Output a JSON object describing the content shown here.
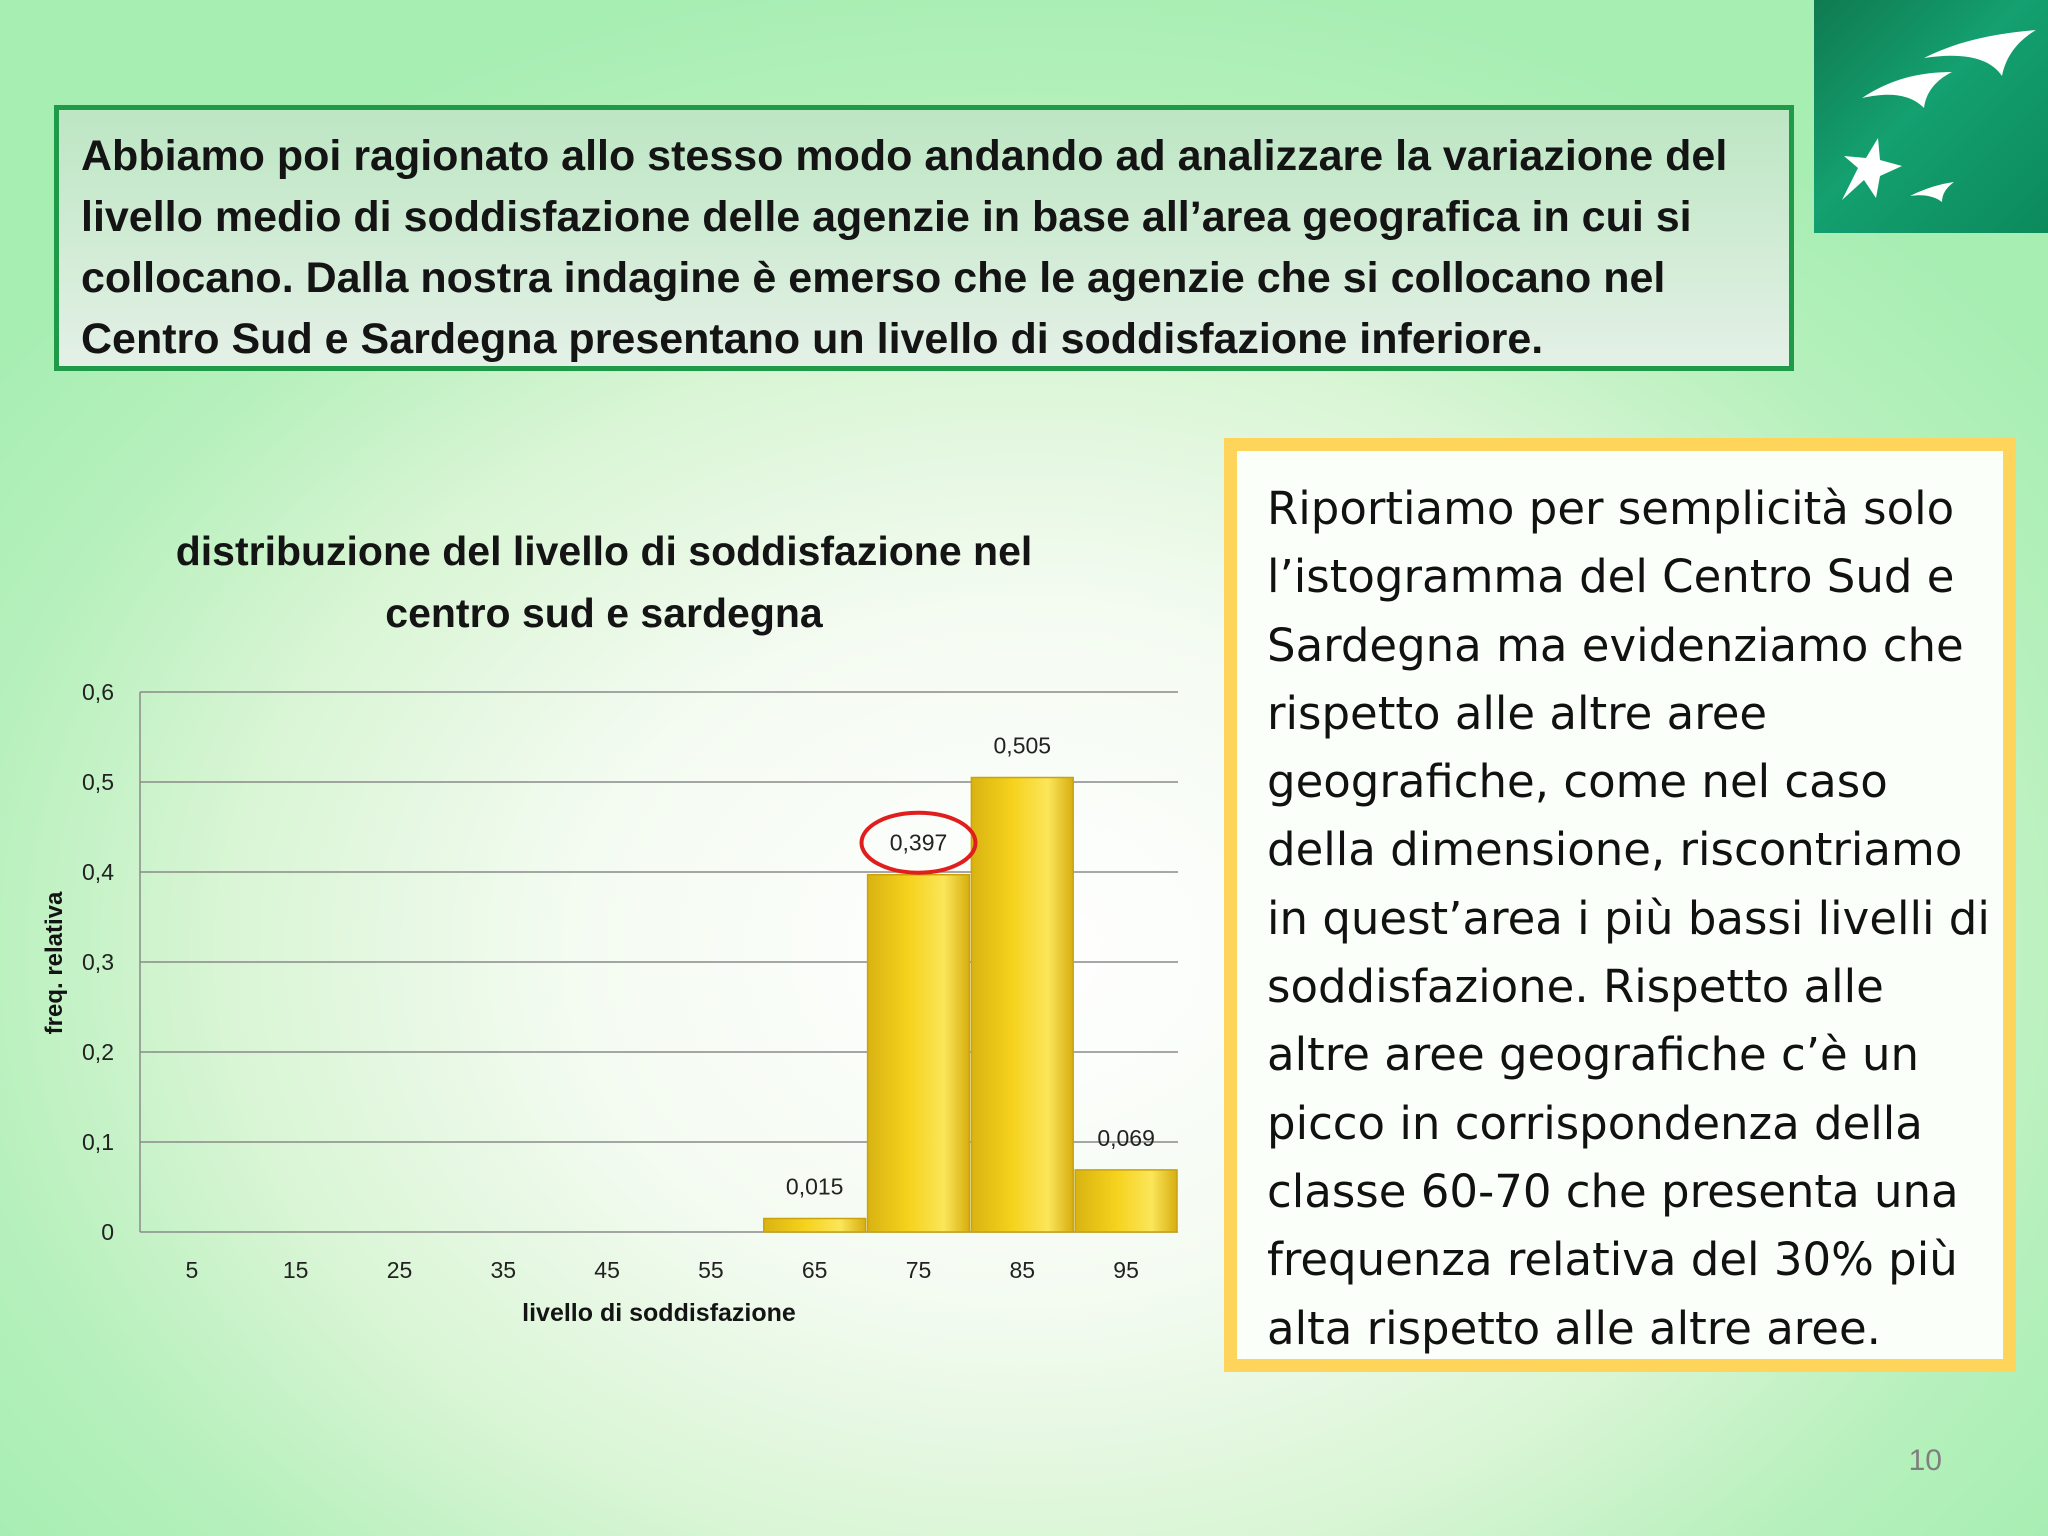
{
  "intro": {
    "text": "Abbiamo poi ragionato allo stesso modo andando ad analizzare la variazione del livello medio di soddisfazione delle agenzie in base all’area geografica in cui si collocano. Dalla nostra indagine è emerso che le agenzie che si collocano nel Centro Sud e Sardegna presentano un livello di soddisfazione inferiore."
  },
  "note": {
    "text": "Riportiamo per semplicità solo l’istogramma del Centro Sud e Sardegna ma evidenziamo che rispetto alle altre aree geografiche, come nel caso della dimensione, riscontriamo in quest’area i più bassi livelli di soddisfazione. Rispetto alle altre aree geografiche c’è un picco in corrispondenza della classe 60-70 che presenta una frequenza relativa del 30% più alta rispetto alle altre aree."
  },
  "page_number": "10",
  "chart_data": {
    "type": "bar",
    "title_lines": [
      "distribuzione del livello di soddisfazione nel",
      "centro sud e sardegna"
    ],
    "xlabel": "livello di soddisfazione",
    "ylabel": "freq. relativa",
    "categories": [
      "5",
      "15",
      "25",
      "35",
      "45",
      "55",
      "65",
      "75",
      "85",
      "95"
    ],
    "values": [
      0,
      0,
      0,
      0,
      0,
      0,
      0.015,
      0.397,
      0.505,
      0.069
    ],
    "data_labels": [
      "",
      "",
      "",
      "",
      "",
      "",
      "0,015",
      "0,397",
      "0,505",
      "0,069"
    ],
    "yticks": [
      "0",
      "0,1",
      "0,2",
      "0,3",
      "0,4",
      "0,5",
      "0,6"
    ],
    "ylim": [
      0,
      0.6
    ],
    "grid": true,
    "highlighted_category": "75",
    "highlight_color": "#e01e1e",
    "bar_color": "#f5d21c"
  }
}
